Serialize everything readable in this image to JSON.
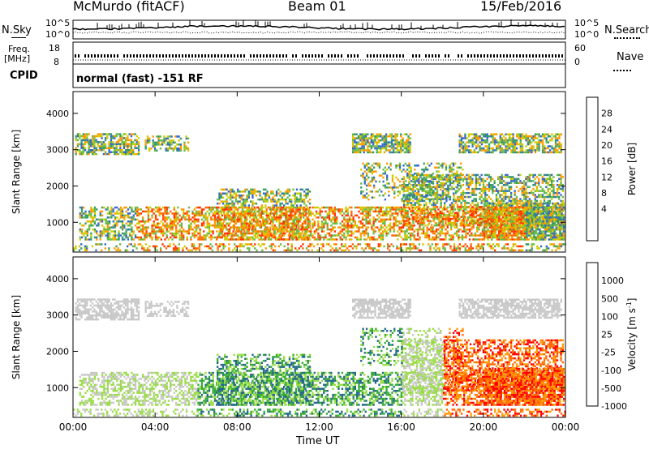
{
  "header": {
    "station": "McMurdo (fitACF)",
    "beam": "Beam 01",
    "date": "15/Feb/2016"
  },
  "noise_panel": {
    "left_label": "N.Sky",
    "right_label": "N.Search",
    "left_ticks": [
      "10^5",
      "10^0"
    ],
    "right_ticks": [
      "10^5",
      "10^0"
    ],
    "right_legend_style": "dotted"
  },
  "freq_panel": {
    "left_label_1": "Freq.",
    "left_label_2": "[MHz]",
    "right_label": "Nave",
    "left_ticks": [
      "18",
      "8"
    ],
    "right_ticks": [
      "60",
      "0"
    ],
    "right_legend_style": "dotted"
  },
  "cpid": {
    "label": "CPID",
    "text": "normal (fast) -151 RF"
  },
  "colors": {
    "velocity_scale": [
      "#ff0000",
      "#ff6600",
      "#ff9900",
      "#c8c8c8",
      "#99dd44",
      "#33aa33",
      "#226688",
      "#1144bb"
    ],
    "power_scale": [
      "#0000ff",
      "#3366cc",
      "#339966",
      "#66bb44",
      "#cccc00",
      "#ff9900",
      "#ff6600",
      "#ff3300",
      "#ff0000"
    ]
  },
  "chart_data": [
    {
      "type": "heatmap",
      "title": "",
      "quantity": "Power",
      "ylabel": "Slant Range [km]",
      "yticks": [
        1000,
        2000,
        3000,
        4000
      ],
      "ylim": [
        180,
        4600
      ],
      "xticks": [
        "00:00",
        "04:00",
        "08:00",
        "12:00",
        "16:00",
        "20:00",
        "00:00"
      ],
      "xlim_hours": [
        0,
        24
      ],
      "colorbar": {
        "label": "Power [dB]",
        "ticks": [
          "28",
          "24",
          "20",
          "16",
          "12",
          "8",
          "4"
        ],
        "range": [
          0,
          30
        ],
        "colors": [
          "#0000ff",
          "#3366cc",
          "#339966",
          "#66bb44",
          "#cccc00",
          "#ff9900",
          "#ff6600",
          "#ff3300",
          "#ff0000"
        ]
      }
    },
    {
      "type": "heatmap",
      "title": "",
      "quantity": "Velocity",
      "ylabel": "Slant Range [km]",
      "yticks": [
        1000,
        2000,
        3000,
        4000
      ],
      "ylim": [
        180,
        4600
      ],
      "xticks": [
        "00:00",
        "04:00",
        "08:00",
        "12:00",
        "16:00",
        "20:00",
        "00:00"
      ],
      "xlabel": "Time UT",
      "xlim_hours": [
        0,
        24
      ],
      "colorbar": {
        "label": "Velocity [m s",
        "label_sup": "-1",
        "label_end": "]",
        "ticks": [
          "1000",
          "500",
          "100",
          "25",
          "-25",
          "-100",
          "-500",
          "-1000"
        ],
        "colors": [
          "#1144bb",
          "#226688",
          "#33aa33",
          "#99dd44",
          "#c8c8c8",
          "#ff9900",
          "#ff6600",
          "#ff0000"
        ]
      }
    }
  ]
}
